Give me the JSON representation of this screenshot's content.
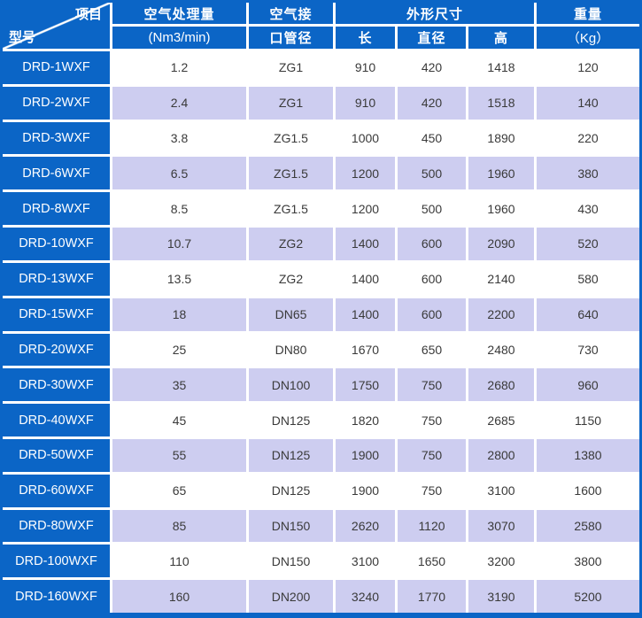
{
  "colors": {
    "header_blue": "#0b65c6",
    "row_alt_lavender": "#cdcdf0",
    "gridline_white": "#ffffff",
    "data_text": "#3a3a3a",
    "header_text": "#ffffff"
  },
  "table": {
    "corner": {
      "top_right": "项目",
      "bottom_left": "型号"
    },
    "header": {
      "capacity_line1": "空气处理量",
      "capacity_line2": "(Nm3/min)",
      "port_line1": "空气接",
      "port_line2": "口管径",
      "dims_group": "外形尺寸",
      "dim_length": "长",
      "dim_diameter": "直径",
      "dim_height": "高",
      "weight_line1": "重量",
      "weight_line2": "（Kg）"
    },
    "rows": [
      {
        "model": "DRD-1WXF",
        "capacity": "1.2",
        "port": "ZG1",
        "length": "910",
        "diameter": "420",
        "height": "1418",
        "weight": "120"
      },
      {
        "model": "DRD-2WXF",
        "capacity": "2.4",
        "port": "ZG1",
        "length": "910",
        "diameter": "420",
        "height": "1518",
        "weight": "140"
      },
      {
        "model": "DRD-3WXF",
        "capacity": "3.8",
        "port": "ZG1.5",
        "length": "1000",
        "diameter": "450",
        "height": "1890",
        "weight": "220"
      },
      {
        "model": "DRD-6WXF",
        "capacity": "6.5",
        "port": "ZG1.5",
        "length": "1200",
        "diameter": "500",
        "height": "1960",
        "weight": "380"
      },
      {
        "model": "DRD-8WXF",
        "capacity": "8.5",
        "port": "ZG1.5",
        "length": "1200",
        "diameter": "500",
        "height": "1960",
        "weight": "430"
      },
      {
        "model": "DRD-10WXF",
        "capacity": "10.7",
        "port": "ZG2",
        "length": "1400",
        "diameter": "600",
        "height": "2090",
        "weight": "520"
      },
      {
        "model": "DRD-13WXF",
        "capacity": "13.5",
        "port": "ZG2",
        "length": "1400",
        "diameter": "600",
        "height": "2140",
        "weight": "580"
      },
      {
        "model": "DRD-15WXF",
        "capacity": "18",
        "port": "DN65",
        "length": "1400",
        "diameter": "600",
        "height": "2200",
        "weight": "640"
      },
      {
        "model": "DRD-20WXF",
        "capacity": "25",
        "port": "DN80",
        "length": "1670",
        "diameter": "650",
        "height": "2480",
        "weight": "730"
      },
      {
        "model": "DRD-30WXF",
        "capacity": "35",
        "port": "DN100",
        "length": "1750",
        "diameter": "750",
        "height": "2680",
        "weight": "960"
      },
      {
        "model": "DRD-40WXF",
        "capacity": "45",
        "port": "DN125",
        "length": "1820",
        "diameter": "750",
        "height": "2685",
        "weight": "1150"
      },
      {
        "model": "DRD-50WXF",
        "capacity": "55",
        "port": "DN125",
        "length": "1900",
        "diameter": "750",
        "height": "2800",
        "weight": "1380"
      },
      {
        "model": "DRD-60WXF",
        "capacity": "65",
        "port": "DN125",
        "length": "1900",
        "diameter": "750",
        "height": "3100",
        "weight": "1600"
      },
      {
        "model": "DRD-80WXF",
        "capacity": "85",
        "port": "DN150",
        "length": "2620",
        "diameter": "1120",
        "height": "3070",
        "weight": "2580"
      },
      {
        "model": "DRD-100WXF",
        "capacity": "110",
        "port": "DN150",
        "length": "3100",
        "diameter": "1650",
        "height": "3200",
        "weight": "3800"
      },
      {
        "model": "DRD-160WXF",
        "capacity": "160",
        "port": "DN200",
        "length": "3240",
        "diameter": "1770",
        "height": "3190",
        "weight": "5200"
      }
    ]
  }
}
